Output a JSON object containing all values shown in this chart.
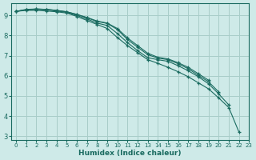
{
  "xlabel": "Humidex (Indice chaleur)",
  "ylabel": "",
  "background_color": "#ceeae8",
  "grid_color": "#a8cdc9",
  "line_color": "#1a6b60",
  "xlim": [
    -0.5,
    23
  ],
  "ylim": [
    2.8,
    9.6
  ],
  "yticks": [
    3,
    4,
    5,
    6,
    7,
    8,
    9
  ],
  "xticks": [
    0,
    1,
    2,
    3,
    4,
    5,
    6,
    7,
    8,
    9,
    10,
    11,
    12,
    13,
    14,
    15,
    16,
    17,
    18,
    19,
    20,
    21,
    22,
    23
  ],
  "series": [
    {
      "x": [
        0,
        1,
        2,
        3,
        4,
        5,
        6,
        7,
        8,
        9,
        10,
        11,
        12,
        13,
        14,
        15,
        16,
        17,
        18,
        19,
        20,
        21,
        22
      ],
      "y": [
        9.2,
        9.25,
        9.25,
        9.22,
        9.18,
        9.12,
        8.95,
        8.75,
        8.55,
        8.35,
        7.9,
        7.5,
        7.15,
        6.8,
        6.62,
        6.42,
        6.2,
        5.95,
        5.65,
        5.35,
        4.9,
        4.42,
        3.2
      ]
    },
    {
      "x": [
        0,
        1,
        2,
        3,
        4,
        5,
        6,
        7,
        8,
        9,
        10,
        11,
        12,
        13,
        14,
        15,
        16,
        17,
        18,
        19,
        20,
        21
      ],
      "y": [
        9.2,
        9.28,
        9.3,
        9.28,
        9.22,
        9.15,
        9.0,
        8.82,
        8.62,
        8.5,
        8.1,
        7.65,
        7.25,
        6.9,
        6.8,
        6.72,
        6.5,
        6.25,
        5.95,
        5.6,
        5.1,
        4.55
      ]
    },
    {
      "x": [
        0,
        1,
        2,
        3,
        4,
        5,
        6,
        7,
        8,
        9,
        10,
        11,
        12,
        13,
        14,
        15,
        16,
        17,
        18,
        19,
        20
      ],
      "y": [
        9.2,
        9.28,
        9.32,
        9.3,
        9.25,
        9.18,
        9.05,
        8.88,
        8.7,
        8.6,
        8.3,
        7.8,
        7.42,
        7.05,
        6.88,
        6.8,
        6.6,
        6.35,
        6.02,
        5.7,
        5.2
      ]
    },
    {
      "x": [
        0,
        1,
        2,
        3,
        4,
        5,
        6,
        7,
        8,
        9,
        10,
        11,
        12,
        13,
        14,
        15,
        16,
        17,
        18,
        19
      ],
      "y": [
        9.2,
        9.3,
        9.32,
        9.3,
        9.25,
        9.18,
        9.05,
        8.9,
        8.72,
        8.62,
        8.35,
        7.88,
        7.5,
        7.12,
        6.92,
        6.84,
        6.65,
        6.42,
        6.1,
        5.78
      ]
    }
  ]
}
